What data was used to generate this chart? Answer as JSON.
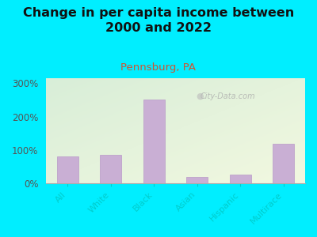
{
  "title": "Change in per capita income between\n2000 and 2022",
  "subtitle": "Pennsburg, PA",
  "categories": [
    "All",
    "White",
    "Black",
    "Asian",
    "Hispanic",
    "Multirace"
  ],
  "values": [
    82,
    86,
    252,
    20,
    27,
    118
  ],
  "bar_color": "#c9afd4",
  "bar_edge_color": "#b899c8",
  "title_fontsize": 11.5,
  "subtitle_fontsize": 9.5,
  "subtitle_color": "#cc5533",
  "background_outer": "#00eeff",
  "ylabel_ticks": [
    "0%",
    "100%",
    "200%",
    "300%"
  ],
  "ytick_values": [
    0,
    100,
    200,
    300
  ],
  "ylim": [
    0,
    315
  ],
  "watermark": "City-Data.com",
  "tick_label_color": "#00cccc",
  "ytick_label_color": "#555555"
}
